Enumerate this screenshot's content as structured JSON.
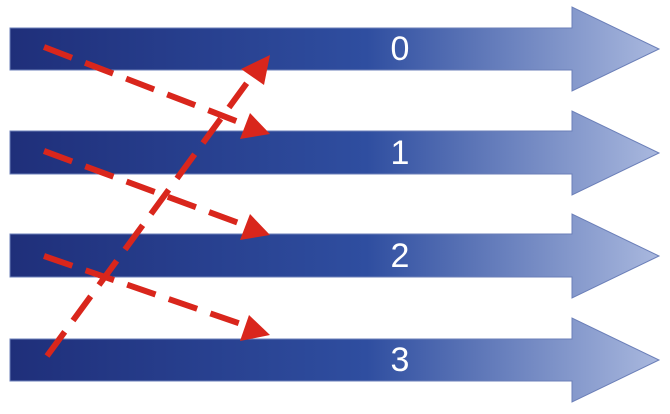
{
  "lanes": [
    {
      "label": "0"
    },
    {
      "label": "1"
    },
    {
      "label": "2"
    },
    {
      "label": "3"
    }
  ],
  "colors": {
    "arrow_dark": "#1f2f7a",
    "arrow_mid": "#2f4ea0",
    "arrow_light": "#a9b8de",
    "arrow_edge": "#6b7fb8",
    "dashed": "#d9261c"
  },
  "connections": [
    {
      "from": 0,
      "to": 1
    },
    {
      "from": 1,
      "to": 2
    },
    {
      "from": 2,
      "to": 3
    },
    {
      "from": 3,
      "to": 0
    }
  ]
}
